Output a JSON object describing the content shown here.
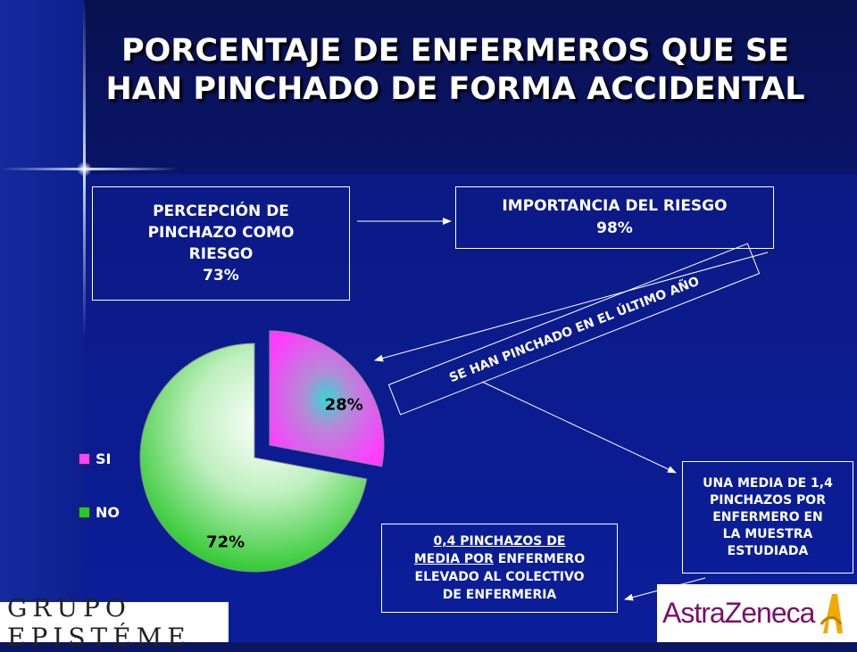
{
  "title": "PORCENTAJE DE ENFERMEROS QUE SE HAN PINCHADO DE FORMA ACCIDENTAL",
  "box_perception": [
    "PERCEPCIÓN DE",
    "PINCHAZO COMO",
    "RIESGO",
    "73%"
  ],
  "box_importance": [
    "IMPORTANCIA DEL RIESGO",
    "98%"
  ],
  "box_tilted": "SE HAN PINCHADO EN EL ÚLTIMO AÑO",
  "box_mean": [
    "UNA MEDIA DE 1,4",
    "PINCHAZOS POR",
    "ENFERMERO EN",
    "LA MUESTRA",
    "ESTUDIADA"
  ],
  "box_note": {
    "line1": "0,4 PINCHAZOS DE",
    "line2_underlined": "MEDIA POR",
    "line2_rest": " ENFERMERO",
    "line3": "ELEVADO AL COLECTIVO",
    "line4": "DE ENFERMERIA"
  },
  "chart_data": {
    "type": "pie",
    "categories": [
      "SI",
      "NO"
    ],
    "values": [
      28,
      72
    ],
    "labels": [
      "28%",
      "72%"
    ],
    "colors": [
      "#ff40ff",
      "#22cc22"
    ],
    "legend_position": "left"
  },
  "logos": {
    "left": "GRUPO EPISTÉME",
    "right": "AstraZeneca"
  },
  "colors": {
    "background": "#0b1e9a",
    "text": "#ffffff"
  }
}
